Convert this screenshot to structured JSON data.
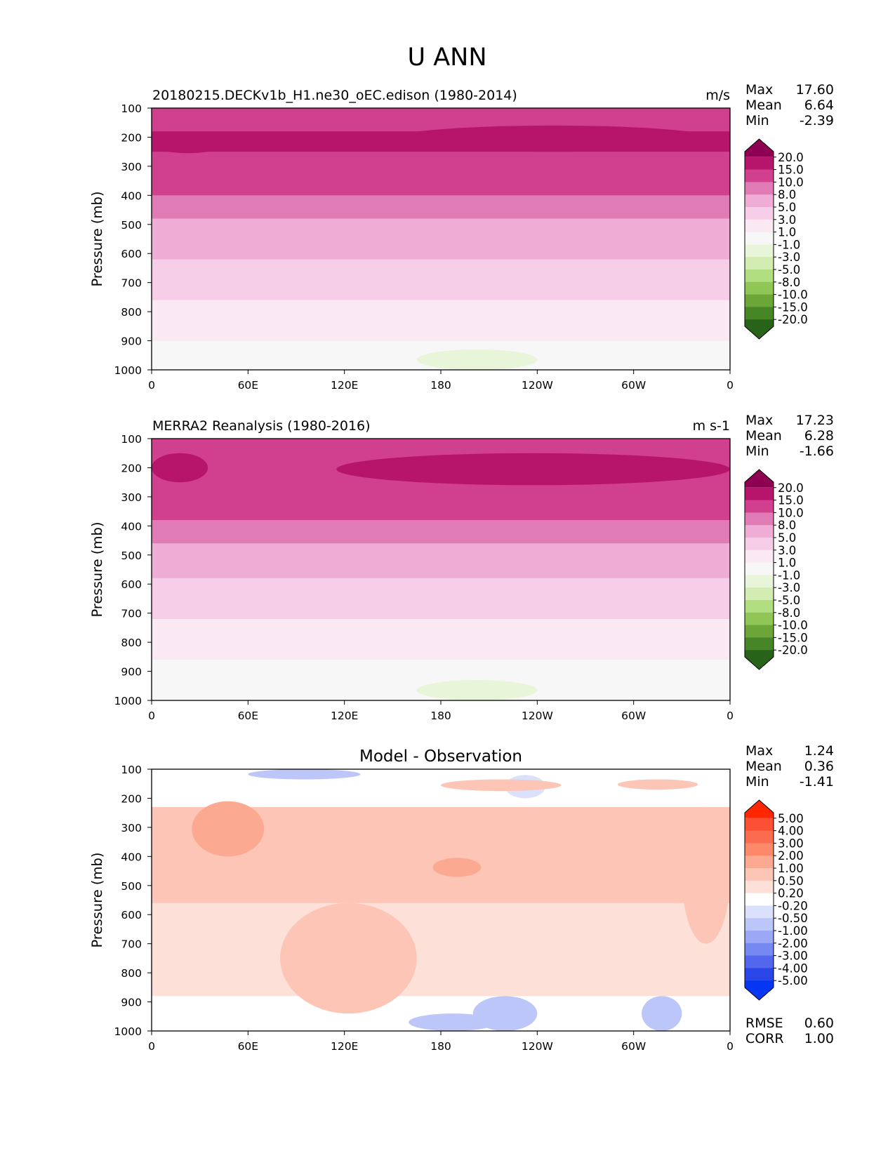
{
  "figure": {
    "title": "U ANN"
  },
  "axis_common": {
    "ylabel": "Pressure (mb)",
    "y_ticks": [
      "100",
      "200",
      "300",
      "400",
      "500",
      "600",
      "700",
      "800",
      "900",
      "1000"
    ],
    "x_ticks": [
      "0",
      "60E",
      "120E",
      "180",
      "120W",
      "60W",
      "0"
    ]
  },
  "chart_data": [
    {
      "type": "heatmap",
      "title": "20180215.DECKv1b_H1.ne30_oEC.edison (1980-2014)",
      "units": "m/s",
      "xlabel": "",
      "ylabel": "Pressure (mb)",
      "ylim": [
        100,
        1000
      ],
      "y_inverted": true,
      "xlim": [
        0,
        360
      ],
      "stats": {
        "max": "17.60",
        "mean": "6.64",
        "min": "-2.39"
      },
      "colorbar": {
        "extend": "both",
        "levels": [
          "20.0",
          "15.0",
          "10.0",
          "8.0",
          "5.0",
          "3.0",
          "1.0",
          "-1.0",
          "-3.0",
          "-5.0",
          "-8.0",
          "-10.0",
          "-15.0",
          "-20.0"
        ],
        "colors": [
          "#8e0152",
          "#b7156c",
          "#d0408e",
          "#e07bb5",
          "#efadd6",
          "#f6cde6",
          "#fae9f2",
          "#f7f7f7",
          "#e9f5d8",
          "#d2ecb2",
          "#b2de82",
          "#8fc656",
          "#6ca538",
          "#478627",
          "#276419"
        ]
      },
      "bands": [
        {
          "p": [
            100,
            120
          ],
          "v": 10
        },
        {
          "p": [
            120,
            180
          ],
          "v": 12
        },
        {
          "p": [
            180,
            250
          ],
          "v": 16
        },
        {
          "p": [
            250,
            400
          ],
          "v": 12
        },
        {
          "p": [
            400,
            480
          ],
          "v": 9
        },
        {
          "p": [
            480,
            620
          ],
          "v": 6
        },
        {
          "p": [
            620,
            760
          ],
          "v": 4
        },
        {
          "p": [
            760,
            900
          ],
          "v": 2
        },
        {
          "p": [
            900,
            1000
          ],
          "v": 0
        }
      ],
      "features": [
        {
          "lon": [
            0,
            45
          ],
          "p": [
            195,
            255
          ],
          "v": 16
        },
        {
          "lon": [
            150,
            350
          ],
          "p": [
            160,
            250
          ],
          "v": 16
        },
        {
          "lon": [
            165,
            240
          ],
          "p": [
            930,
            1000
          ],
          "v": -2
        }
      ]
    },
    {
      "type": "heatmap",
      "title": "MERRA2 Reanalysis (1980-2016)",
      "units": "m s-1",
      "xlabel": "",
      "ylabel": "Pressure (mb)",
      "ylim": [
        100,
        1000
      ],
      "y_inverted": true,
      "xlim": [
        0,
        360
      ],
      "stats": {
        "max": "17.23",
        "mean": "6.28",
        "min": "-1.66"
      },
      "colorbar": {
        "extend": "both",
        "levels": [
          "20.0",
          "15.0",
          "10.0",
          "8.0",
          "5.0",
          "3.0",
          "1.0",
          "-1.0",
          "-3.0",
          "-5.0",
          "-8.0",
          "-10.0",
          "-15.0",
          "-20.0"
        ],
        "colors": [
          "#8e0152",
          "#b7156c",
          "#d0408e",
          "#e07bb5",
          "#efadd6",
          "#f6cde6",
          "#fae9f2",
          "#f7f7f7",
          "#e9f5d8",
          "#d2ecb2",
          "#b2de82",
          "#8fc656",
          "#6ca538",
          "#478627",
          "#276419"
        ]
      },
      "bands": [
        {
          "p": [
            100,
            120
          ],
          "v": 10
        },
        {
          "p": [
            120,
            180
          ],
          "v": 12
        },
        {
          "p": [
            180,
            260
          ],
          "v": 12
        },
        {
          "p": [
            260,
            380
          ],
          "v": 12
        },
        {
          "p": [
            380,
            460
          ],
          "v": 9
        },
        {
          "p": [
            460,
            580
          ],
          "v": 6
        },
        {
          "p": [
            580,
            720
          ],
          "v": 4
        },
        {
          "p": [
            720,
            860
          ],
          "v": 2
        },
        {
          "p": [
            860,
            1000
          ],
          "v": 0
        }
      ],
      "features": [
        {
          "lon": [
            0,
            35
          ],
          "p": [
            150,
            250
          ],
          "v": 16
        },
        {
          "lon": [
            115,
            360
          ],
          "p": [
            150,
            260
          ],
          "v": 16
        },
        {
          "lon": [
            165,
            240
          ],
          "p": [
            930,
            1000
          ],
          "v": -2
        }
      ]
    },
    {
      "type": "heatmap",
      "title": "Model - Observation",
      "units": "",
      "xlabel": "",
      "ylabel": "Pressure (mb)",
      "ylim": [
        100,
        1000
      ],
      "y_inverted": true,
      "xlim": [
        0,
        360
      ],
      "stats": {
        "max": "1.24",
        "mean": "0.36",
        "min": "-1.41"
      },
      "metrics": {
        "rmse_label": "RMSE",
        "rmse": "0.60",
        "corr_label": "CORR",
        "corr": "1.00"
      },
      "colorbar": {
        "extend": "both",
        "levels": [
          "5.00",
          "4.00",
          "3.00",
          "2.00",
          "1.00",
          "0.50",
          "0.20",
          "-0.20",
          "-0.50",
          "-1.00",
          "-2.00",
          "-3.00",
          "-4.00",
          "-5.00"
        ],
        "colors": [
          "#ff2600",
          "#fb5033",
          "#fb6b4f",
          "#fc8a6a",
          "#fca992",
          "#fcc5b5",
          "#fde1d8",
          "#ffffff",
          "#dbe1fb",
          "#bcc6f8",
          "#9aa8f5",
          "#7688f2",
          "#5267ee",
          "#2a45e8",
          "#0536f2"
        ]
      },
      "bands": [
        {
          "p": [
            100,
            230
          ],
          "v": 0
        },
        {
          "p": [
            230,
            560
          ],
          "v": 0.6
        },
        {
          "p": [
            560,
            880
          ],
          "v": 0.3
        },
        {
          "p": [
            880,
            1000
          ],
          "v": 0
        }
      ],
      "features": [
        {
          "lon": [
            80,
            165
          ],
          "p": [
            560,
            940
          ],
          "v": 0.6
        },
        {
          "lon": [
            330,
            360
          ],
          "p": [
            230,
            700
          ],
          "v": 0.6
        },
        {
          "lon": [
            25,
            70
          ],
          "p": [
            210,
            400
          ],
          "v": 1.2
        },
        {
          "lon": [
            175,
            205
          ],
          "p": [
            405,
            470
          ],
          "v": 1.2
        },
        {
          "lon": [
            60,
            130
          ],
          "p": [
            100,
            135
          ],
          "v": -0.6
        },
        {
          "lon": [
            220,
            245
          ],
          "p": [
            120,
            200
          ],
          "v": -0.3
        },
        {
          "lon": [
            160,
            215
          ],
          "p": [
            940,
            1000
          ],
          "v": -0.6
        },
        {
          "lon": [
            200,
            240
          ],
          "p": [
            880,
            1000
          ],
          "v": -0.6
        },
        {
          "lon": [
            305,
            330
          ],
          "p": [
            880,
            1000
          ],
          "v": -0.6
        },
        {
          "lon": [
            180,
            255
          ],
          "p": [
            135,
            175
          ],
          "v": 0.6
        },
        {
          "lon": [
            290,
            340
          ],
          "p": [
            135,
            170
          ],
          "v": 0.6
        }
      ]
    }
  ]
}
